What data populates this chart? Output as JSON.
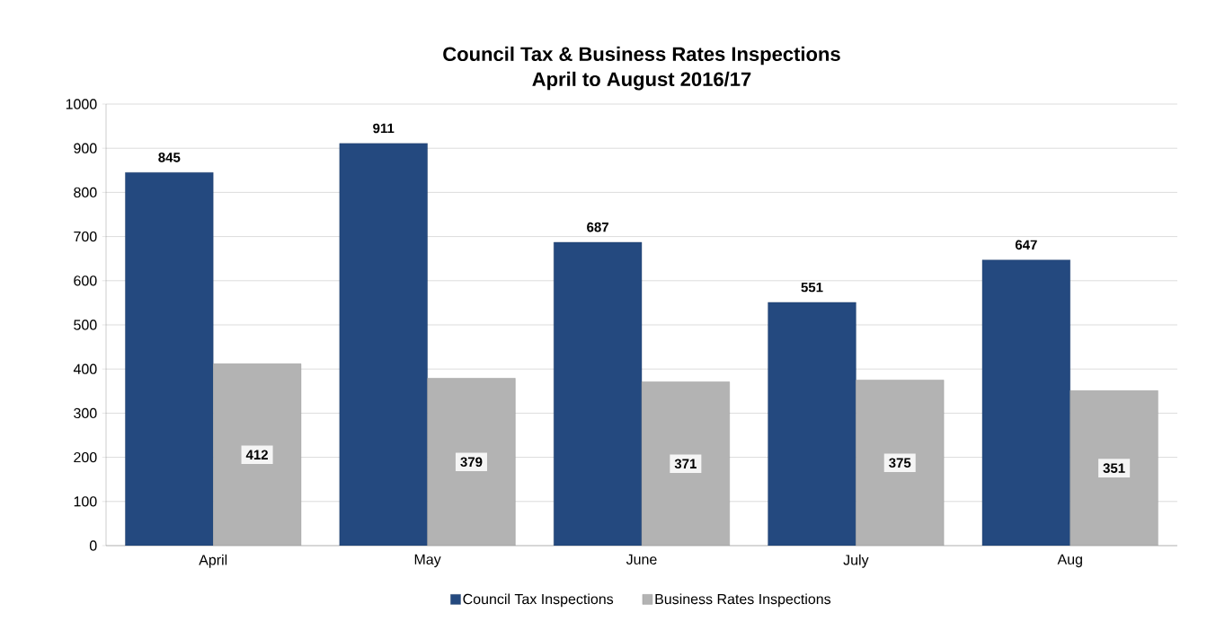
{
  "chart_data": {
    "type": "bar",
    "title": "Council Tax & Business Rates Inspections",
    "subtitle": "April to August 2016/17",
    "categories": [
      "April",
      "May",
      "June",
      "July",
      "Aug"
    ],
    "series": [
      {
        "name": "Council Tax Inspections",
        "color": "#24497f",
        "values": [
          845,
          911,
          687,
          551,
          647
        ]
      },
      {
        "name": "Business Rates Inspections",
        "color": "#b3b3b3",
        "values": [
          412,
          379,
          371,
          375,
          351
        ]
      }
    ],
    "ylim": [
      0,
      1000
    ],
    "yticks": [
      0,
      100,
      200,
      300,
      400,
      500,
      600,
      700,
      800,
      900,
      1000
    ],
    "grid": "y",
    "legend": "bottom",
    "data_labels": true
  }
}
